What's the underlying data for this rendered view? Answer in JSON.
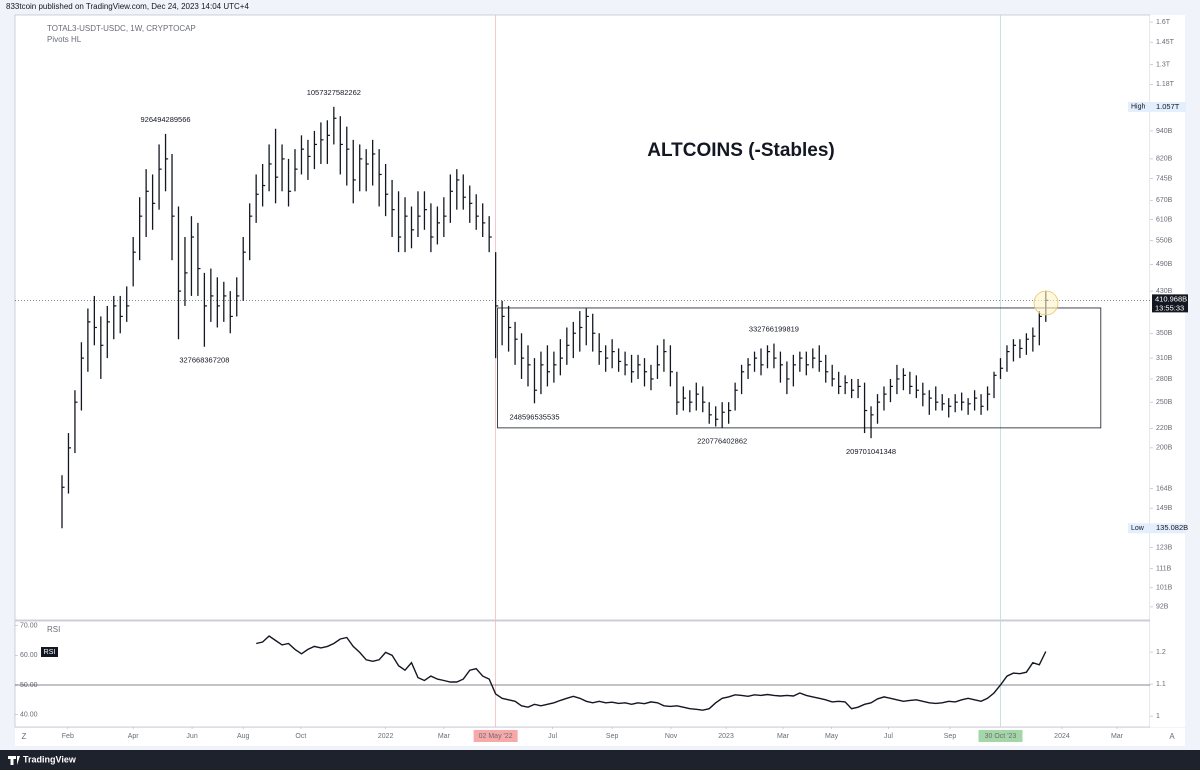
{
  "header": {
    "text": "833tcoin published on TradingView.com, Dec 24, 2023 14:04 UTC+4"
  },
  "footer": {
    "brand": "TradingView",
    "left_button": "Z",
    "right_button": "A"
  },
  "chart_data": {
    "type": "ohlc",
    "title": "ALTCOINS (-Stables)",
    "symbol": "TOTAL3-USDT-USDC, 1W, CRYPTOCAP",
    "indicator": "Pivots HL",
    "color": "#131722",
    "log_scale": true,
    "ylim": [
      86.3,
      1655.6
    ],
    "yticks": [
      {
        "value": 1600,
        "label": "1.6T"
      },
      {
        "value": 1450,
        "label": "1.45T"
      },
      {
        "value": 1300,
        "label": "1.3T"
      },
      {
        "value": 1180,
        "label": "1.18T"
      },
      {
        "value": 940,
        "label": "940B"
      },
      {
        "value": 820,
        "label": "820B"
      },
      {
        "value": 745,
        "label": "745B"
      },
      {
        "value": 670,
        "label": "670B"
      },
      {
        "value": 610,
        "label": "610B"
      },
      {
        "value": 550,
        "label": "550B"
      },
      {
        "value": 490,
        "label": "490B"
      },
      {
        "value": 430,
        "label": "430B"
      },
      {
        "value": 350,
        "label": "350B"
      },
      {
        "value": 310,
        "label": "310B"
      },
      {
        "value": 280,
        "label": "280B"
      },
      {
        "value": 250,
        "label": "250B"
      },
      {
        "value": 220,
        "label": "220B"
      },
      {
        "value": 200,
        "label": "200B"
      },
      {
        "value": 164,
        "label": "164B"
      },
      {
        "value": 149,
        "label": "149B"
      },
      {
        "value": 123,
        "label": "123B"
      },
      {
        "value": 111,
        "label": "111B"
      },
      {
        "value": 101,
        "label": "101B"
      },
      {
        "value": 92,
        "label": "92B"
      }
    ],
    "xlim": [
      -7.26,
      168.1
    ],
    "xticks": [
      {
        "value": 0.9,
        "label": "Feb"
      },
      {
        "value": 11,
        "label": "Apr"
      },
      {
        "value": 20.1,
        "label": "Jun"
      },
      {
        "value": 28,
        "label": "Aug"
      },
      {
        "value": 36.9,
        "label": "Oct"
      },
      {
        "value": 50,
        "label": "2022"
      },
      {
        "value": 59,
        "label": "Mar"
      },
      {
        "value": 67,
        "label": "02 May '22",
        "color": "#f7a8a8",
        "line_color": "#f2b8b8"
      },
      {
        "value": 75.8,
        "label": "Jul"
      },
      {
        "value": 85,
        "label": "Sep"
      },
      {
        "value": 94.1,
        "label": "Nov"
      },
      {
        "value": 102.6,
        "label": "2023"
      },
      {
        "value": 111.4,
        "label": "Mar"
      },
      {
        "value": 118.9,
        "label": "May"
      },
      {
        "value": 127.7,
        "label": "Jul"
      },
      {
        "value": 137.2,
        "label": "Sep"
      },
      {
        "value": 145,
        "label": "30 Oct '23",
        "color": "#a5d6a7",
        "line_color": "#b2dfdb"
      },
      {
        "value": 154.5,
        "label": "2024"
      },
      {
        "value": 163,
        "label": "Mar"
      }
    ],
    "high": [
      175,
      215,
      265,
      335,
      395,
      420,
      380,
      400,
      420,
      420,
      440,
      560,
      680,
      780,
      760,
      880,
      926.49,
      840,
      650,
      560,
      620,
      600,
      470,
      480,
      460,
      450,
      430,
      460,
      560,
      660,
      760,
      800,
      880,
      950,
      880,
      820,
      860,
      920,
      900,
      940,
      980,
      990,
      1057.33,
      1010,
      960,
      900,
      880,
      860,
      900,
      860,
      800,
      740,
      700,
      680,
      650,
      700,
      700,
      660,
      650,
      680,
      760,
      780,
      760,
      720,
      690,
      660,
      620,
      520,
      410,
      400,
      370,
      350,
      330,
      310,
      320,
      330,
      320,
      340,
      360,
      370,
      390,
      395,
      385,
      350,
      330,
      340,
      325,
      320,
      315,
      315,
      310,
      300,
      330,
      340,
      330,
      290,
      270,
      265,
      275,
      270,
      250,
      245,
      250,
      250,
      275,
      300,
      310,
      320,
      325,
      330,
      332.77,
      320,
      305,
      315,
      320,
      320,
      325,
      330,
      315,
      300,
      290,
      285,
      280,
      280,
      275,
      245,
      260,
      270,
      280,
      300,
      295,
      290,
      285,
      275,
      265,
      270,
      260,
      255,
      260,
      262,
      255,
      265,
      260,
      270,
      290,
      310,
      330,
      340,
      340,
      350,
      360,
      390,
      430
    ],
    "low": [
      135.082,
      160,
      195,
      240,
      290,
      330,
      280,
      310,
      340,
      350,
      370,
      440,
      500,
      560,
      580,
      640,
      700,
      500,
      340,
      400,
      420,
      420,
      327.67,
      370,
      360,
      370,
      350,
      380,
      410,
      500,
      600,
      650,
      700,
      660,
      700,
      650,
      700,
      760,
      740,
      780,
      800,
      800,
      880,
      760,
      720,
      660,
      700,
      700,
      720,
      650,
      620,
      560,
      520,
      520,
      530,
      560,
      580,
      520,
      540,
      560,
      600,
      640,
      640,
      600,
      580,
      560,
      520,
      310,
      330,
      320,
      300,
      280,
      270,
      248.6,
      260,
      270,
      275,
      285,
      300,
      310,
      320,
      330,
      320,
      300,
      290,
      295,
      290,
      285,
      275,
      280,
      270,
      265,
      280,
      290,
      270,
      235,
      240,
      238,
      240,
      238,
      225,
      222,
      220.78,
      225,
      240,
      260,
      280,
      290,
      285,
      295,
      295,
      275,
      260,
      270,
      290,
      285,
      295,
      290,
      275,
      270,
      260,
      260,
      255,
      255,
      215,
      209.7,
      225,
      240,
      250,
      260,
      265,
      260,
      255,
      245,
      235,
      240,
      240,
      232,
      238,
      240,
      235,
      240,
      235,
      240,
      255,
      280,
      290,
      305,
      310,
      315,
      320,
      330,
      370
    ],
    "close": [
      165,
      200,
      250,
      310,
      370,
      360,
      330,
      370,
      400,
      380,
      400,
      520,
      620,
      700,
      660,
      780,
      820,
      620,
      430,
      470,
      560,
      480,
      400,
      420,
      400,
      420,
      380,
      420,
      520,
      620,
      690,
      720,
      800,
      750,
      820,
      700,
      780,
      860,
      830,
      880,
      900,
      920,
      1000,
      880,
      860,
      740,
      820,
      800,
      840,
      760,
      690,
      640,
      560,
      620,
      580,
      620,
      640,
      560,
      600,
      620,
      700,
      740,
      680,
      660,
      620,
      600,
      560,
      400,
      380,
      360,
      340,
      310,
      300,
      265,
      300,
      290,
      300,
      310,
      330,
      350,
      360,
      380,
      350,
      320,
      310,
      320,
      305,
      300,
      290,
      300,
      290,
      280,
      300,
      320,
      290,
      250,
      255,
      250,
      260,
      250,
      235,
      230,
      238,
      240,
      265,
      290,
      300,
      310,
      300,
      320,
      310,
      300,
      280,
      300,
      310,
      300,
      310,
      305,
      290,
      280,
      270,
      275,
      265,
      270,
      240,
      235,
      250,
      260,
      270,
      280,
      285,
      270,
      265,
      260,
      255,
      250,
      248,
      245,
      250,
      250,
      248,
      255,
      245,
      260,
      285,
      295,
      320,
      330,
      325,
      340,
      345,
      380,
      410.968
    ],
    "pivots": [
      {
        "index": 16,
        "kind": "high",
        "label": "926494289566"
      },
      {
        "index": 22,
        "kind": "low",
        "label": "327668367208"
      },
      {
        "index": 42,
        "kind": "high",
        "label": "1057327582262"
      },
      {
        "index": 73,
        "kind": "low",
        "label": "248596535535"
      },
      {
        "index": 102,
        "kind": "low",
        "label": "220776402862"
      },
      {
        "index": 110,
        "kind": "high",
        "label": "332766199819"
      },
      {
        "index": 125,
        "kind": "low",
        "label": "209701041348"
      }
    ],
    "box": {
      "x": [
        67.3,
        160.5
      ],
      "y": [
        220.5,
        396
      ]
    },
    "price_line": {
      "value": 410.968,
      "label": "410.968B",
      "countdown": "13:55:33",
      "color": "#131722"
    },
    "high_marker": {
      "name": "High",
      "value": 1057,
      "label": "1.057T"
    },
    "low_marker": {
      "name": "Low",
      "value": 135.082,
      "label": "135.082B"
    },
    "rsi": {
      "name": "RSI",
      "ylim": [
        35.84,
        71.57
      ],
      "yticks": [
        {
          "value": 70,
          "label": "70.00"
        },
        {
          "value": 60,
          "label": "60.00"
        },
        {
          "value": 50,
          "label": "50.00"
        },
        {
          "value": 40,
          "label": "40.00"
        }
      ],
      "y2lim": [
        0.966,
        1.297
      ],
      "y2ticks": [
        1.2,
        1.1,
        1
      ],
      "level": 50,
      "values": [
        null,
        null,
        null,
        null,
        null,
        null,
        null,
        null,
        null,
        null,
        null,
        null,
        null,
        null,
        null,
        null,
        null,
        null,
        null,
        null,
        null,
        null,
        null,
        null,
        null,
        null,
        null,
        null,
        null,
        null,
        64,
        64.5,
        66.5,
        65,
        63.5,
        64,
        62,
        60.5,
        62,
        63,
        62.5,
        63,
        64,
        65.5,
        66,
        63,
        61,
        58.5,
        58,
        58.5,
        61,
        60,
        56.5,
        55,
        57.5,
        52.5,
        51.5,
        53,
        52,
        51.5,
        51,
        51,
        52,
        55,
        55.5,
        53,
        52,
        47,
        45.5,
        45,
        44.5,
        43,
        42.5,
        43.5,
        43,
        43.5,
        44,
        44.8,
        45.5,
        46.2,
        45.5,
        44.5,
        44,
        44.5,
        44,
        44.2,
        43.8,
        44,
        43.5,
        44,
        43.7,
        44.3,
        44,
        43,
        42.8,
        43,
        42.5,
        42,
        41.8,
        41.5,
        42,
        44,
        45.5,
        46,
        46.7,
        46.5,
        46.2,
        46.7,
        46.5,
        46.8,
        46.5,
        46.3,
        46.5,
        46.3,
        47.3,
        46.5,
        46,
        45.5,
        45,
        44.3,
        44.5,
        44.3,
        42,
        42.5,
        43.5,
        44,
        45.3,
        46,
        45.5,
        45,
        44.5,
        44.8,
        45,
        44.5,
        44,
        43.8,
        44,
        44.5,
        44.3,
        45,
        45.5,
        45,
        44.5,
        45.5,
        47.3,
        50,
        53,
        54,
        53.8,
        54.3,
        57.5,
        56.8,
        61.3
      ]
    }
  }
}
